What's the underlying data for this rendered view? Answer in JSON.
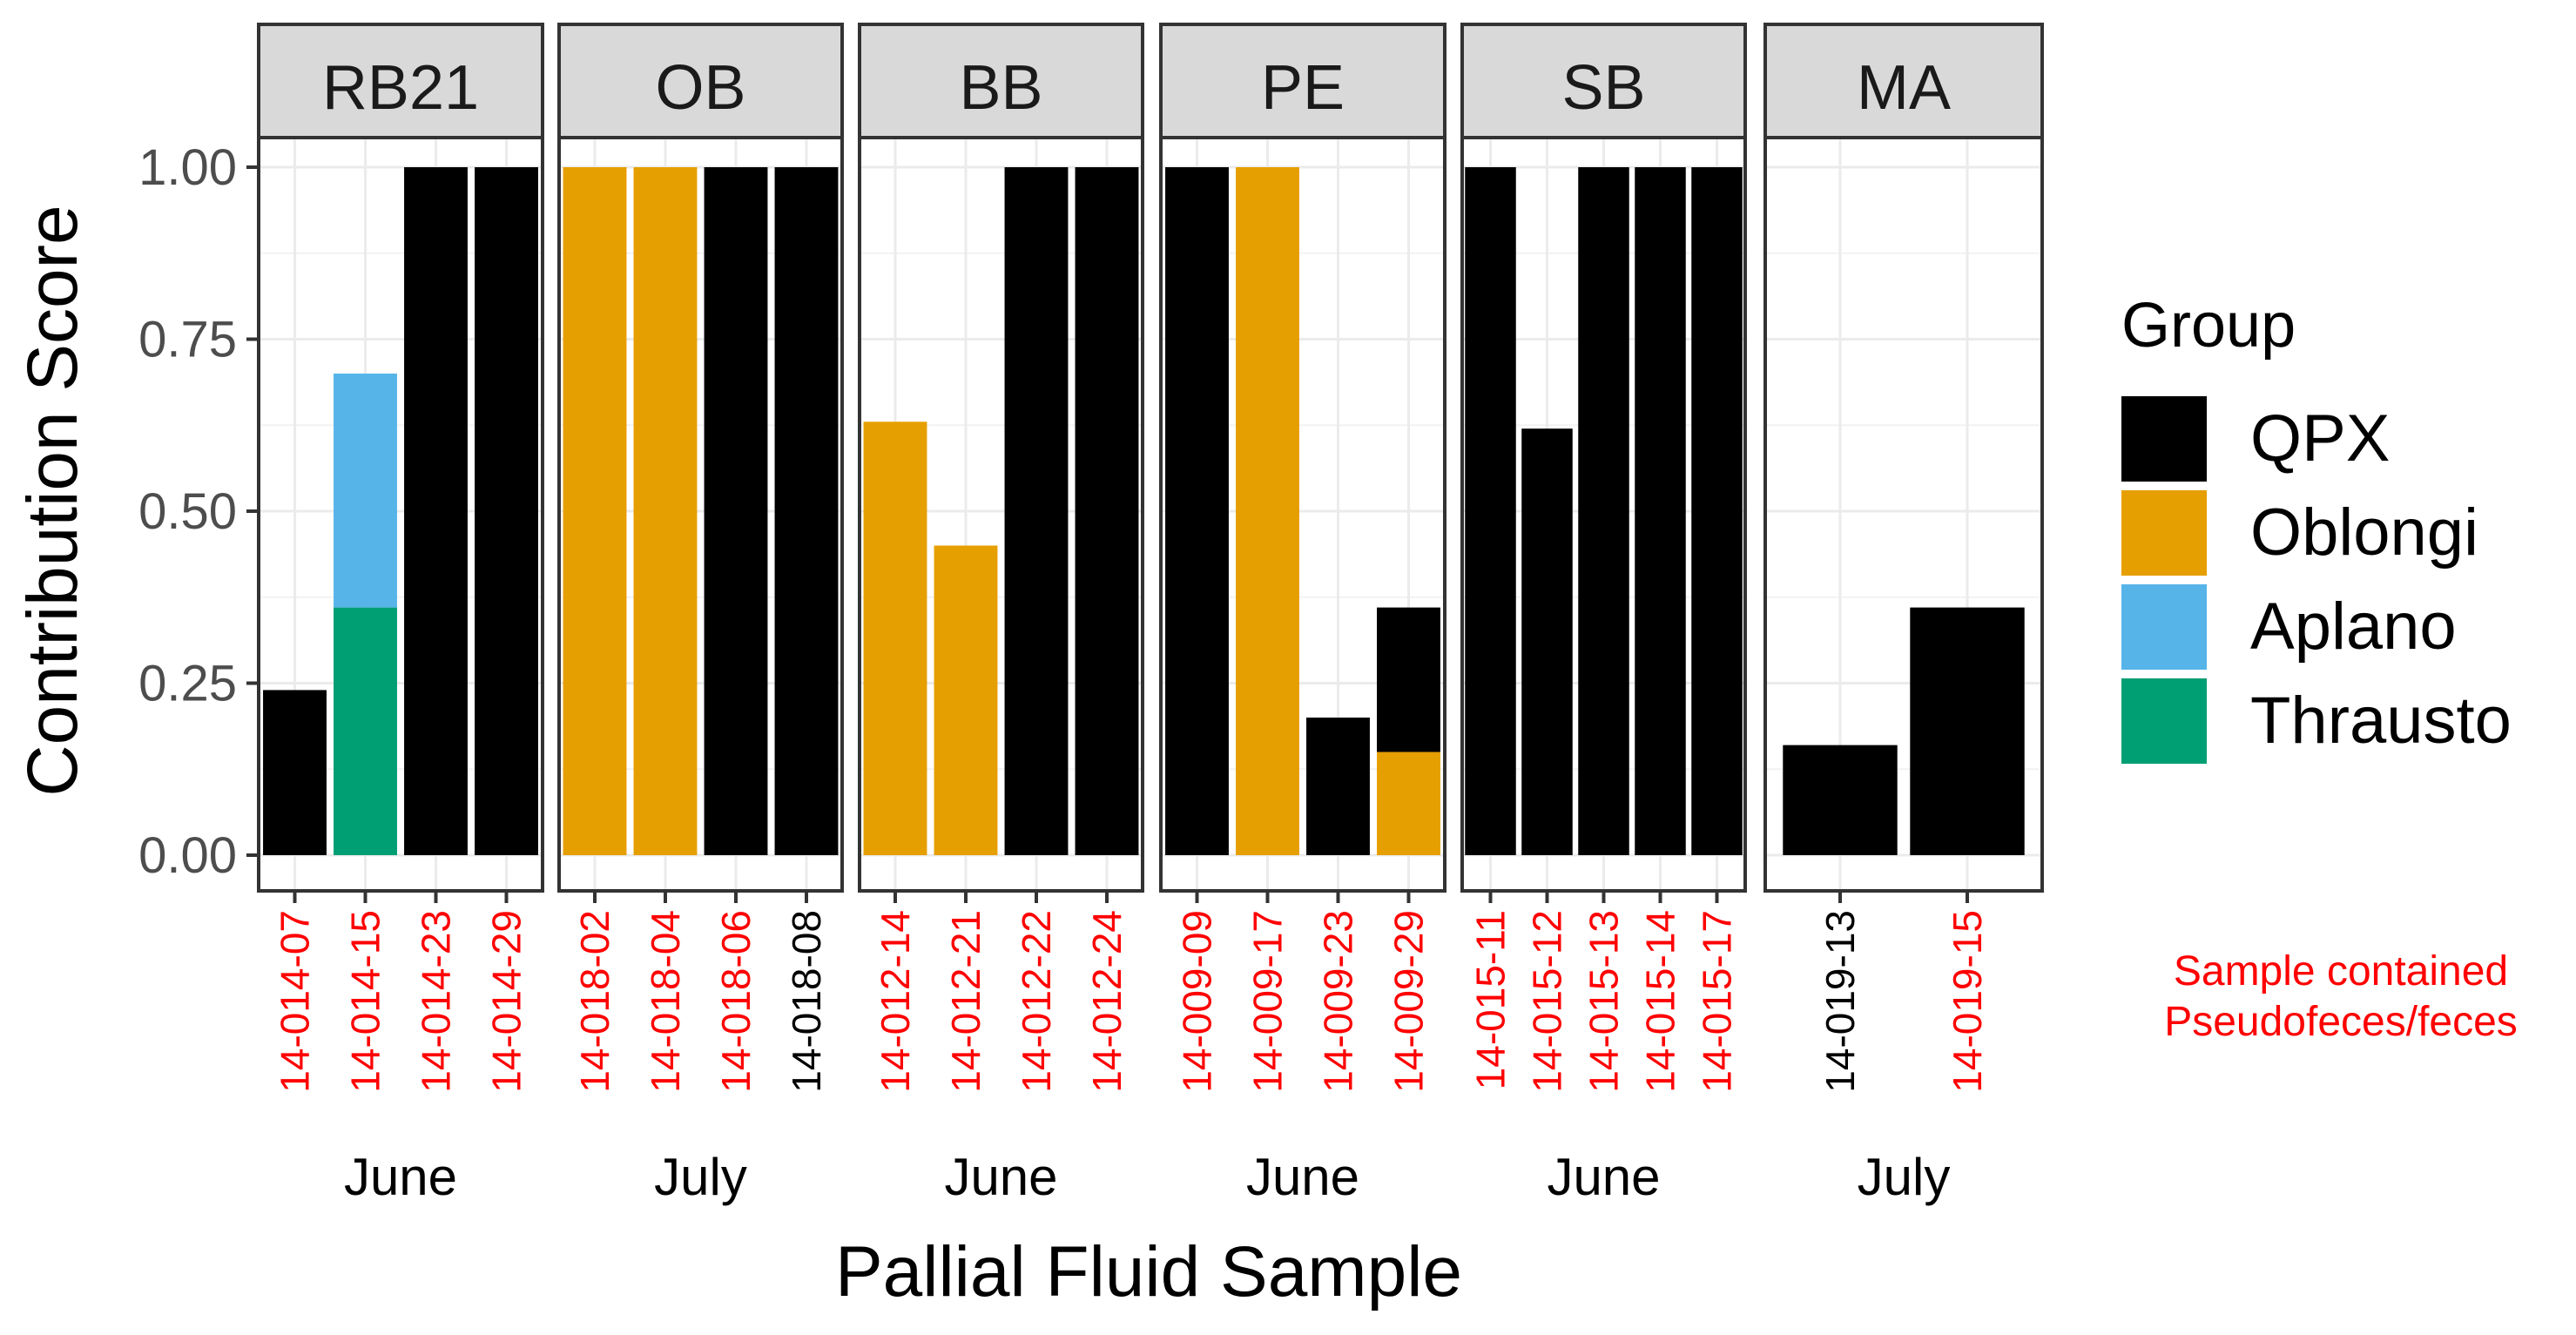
{
  "chart_data": {
    "type": "bar",
    "stacked": true,
    "ylabel": "Contribution Score",
    "xlabel": "Pallial Fluid Sample",
    "ylim": [
      0,
      1.04
    ],
    "yticks": [
      0,
      0.25,
      0.5,
      0.75,
      1.0
    ],
    "ytick_labels": [
      "0.00",
      "0.25",
      "0.50",
      "0.75",
      "1.00"
    ],
    "grid": true,
    "legend": {
      "title": "Group",
      "placement": "right",
      "entries": [
        {
          "name": "QPX",
          "color": "#000000"
        },
        {
          "name": "Oblongi",
          "color": "#E69F00"
        },
        {
          "name": "Aplano",
          "color": "#56B4E9"
        },
        {
          "name": "Thrausto",
          "color": "#009E73"
        }
      ]
    },
    "note": {
      "lines": [
        "Sample contained",
        "Pseudofeces/feces"
      ],
      "color": "#FF0000"
    },
    "label_colors": {
      "flagged": "#FF0000",
      "normal": "#000000"
    },
    "panels": [
      {
        "strip": "RB21",
        "month": "June",
        "samples": [
          {
            "id": "14-014-07",
            "flagged": true,
            "segments": [
              {
                "group": "QPX",
                "value": 0.24
              }
            ]
          },
          {
            "id": "14-014-15",
            "flagged": true,
            "segments": [
              {
                "group": "Thrausto",
                "value": 0.36
              },
              {
                "group": "Aplano",
                "value": 0.34
              }
            ]
          },
          {
            "id": "14-014-23",
            "flagged": true,
            "segments": [
              {
                "group": "QPX",
                "value": 1.0
              }
            ]
          },
          {
            "id": "14-014-29",
            "flagged": true,
            "segments": [
              {
                "group": "QPX",
                "value": 1.0
              }
            ]
          }
        ]
      },
      {
        "strip": "OB",
        "month": "July",
        "samples": [
          {
            "id": "14-018-02",
            "flagged": true,
            "segments": [
              {
                "group": "Oblongi",
                "value": 1.0
              }
            ]
          },
          {
            "id": "14-018-04",
            "flagged": true,
            "segments": [
              {
                "group": "Oblongi",
                "value": 1.0
              }
            ]
          },
          {
            "id": "14-018-06",
            "flagged": true,
            "segments": [
              {
                "group": "QPX",
                "value": 1.0
              }
            ]
          },
          {
            "id": "14-018-08",
            "flagged": false,
            "segments": [
              {
                "group": "QPX",
                "value": 1.0
              }
            ]
          }
        ]
      },
      {
        "strip": "BB",
        "month": "June",
        "samples": [
          {
            "id": "14-012-14",
            "flagged": true,
            "segments": [
              {
                "group": "Oblongi",
                "value": 0.63
              }
            ]
          },
          {
            "id": "14-012-21",
            "flagged": true,
            "segments": [
              {
                "group": "Oblongi",
                "value": 0.45
              }
            ]
          },
          {
            "id": "14-012-22",
            "flagged": true,
            "segments": [
              {
                "group": "QPX",
                "value": 1.0
              }
            ]
          },
          {
            "id": "14-012-24",
            "flagged": true,
            "segments": [
              {
                "group": "QPX",
                "value": 1.0
              }
            ]
          }
        ]
      },
      {
        "strip": "PE",
        "month": "June",
        "samples": [
          {
            "id": "14-009-09",
            "flagged": true,
            "segments": [
              {
                "group": "QPX",
                "value": 1.0
              }
            ]
          },
          {
            "id": "14-009-17",
            "flagged": true,
            "segments": [
              {
                "group": "Oblongi",
                "value": 1.0
              }
            ]
          },
          {
            "id": "14-009-23",
            "flagged": true,
            "segments": [
              {
                "group": "QPX",
                "value": 0.2
              }
            ]
          },
          {
            "id": "14-009-29",
            "flagged": true,
            "segments": [
              {
                "group": "Oblongi",
                "value": 0.15
              },
              {
                "group": "QPX",
                "value": 0.21
              }
            ]
          }
        ]
      },
      {
        "strip": "SB",
        "month": "June",
        "samples": [
          {
            "id": "14-015-11",
            "flagged": true,
            "segments": [
              {
                "group": "QPX",
                "value": 1.0
              }
            ]
          },
          {
            "id": "14-015-12",
            "flagged": true,
            "segments": [
              {
                "group": "QPX",
                "value": 0.62
              }
            ]
          },
          {
            "id": "14-015-13",
            "flagged": true,
            "segments": [
              {
                "group": "QPX",
                "value": 1.0
              }
            ]
          },
          {
            "id": "14-015-14",
            "flagged": true,
            "segments": [
              {
                "group": "QPX",
                "value": 1.0
              }
            ]
          },
          {
            "id": "14-015-17",
            "flagged": true,
            "segments": [
              {
                "group": "QPX",
                "value": 1.0
              }
            ]
          }
        ]
      },
      {
        "strip": "MA",
        "month": "July",
        "samples": [
          {
            "id": "14-019-13",
            "flagged": false,
            "segments": [
              {
                "group": "QPX",
                "value": 0.16
              }
            ]
          },
          {
            "id": "14-019-15",
            "flagged": true,
            "segments": [
              {
                "group": "QPX",
                "value": 0.36
              }
            ]
          }
        ]
      }
    ]
  }
}
